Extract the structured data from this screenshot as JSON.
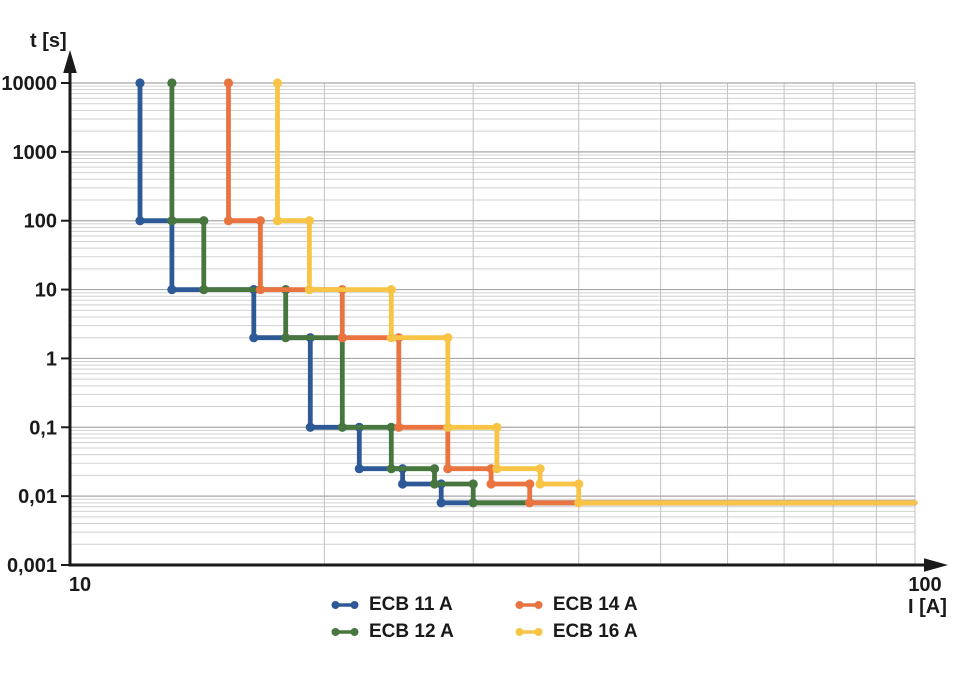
{
  "chart_data": {
    "type": "line",
    "subtype": "stepped-trip-curves",
    "title": "",
    "xlabel": "I [A]",
    "ylabel": "t [s]",
    "x_scale": "log",
    "y_scale": "log",
    "xlim": [
      10,
      100
    ],
    "ylim": [
      0.001,
      10000
    ],
    "x_ticks": [
      10,
      100
    ],
    "x_tick_labels": [
      "10",
      "100"
    ],
    "y_ticks": [
      10000,
      1000,
      100,
      10,
      1,
      0.1,
      0.01,
      0.001
    ],
    "y_tick_labels": [
      "10000",
      "1000",
      "100",
      "10",
      "1",
      "0,1",
      "0,01",
      "0,001"
    ],
    "grid": "major+minor",
    "grid_major_color": "#a6a6a6",
    "grid_minor_color": "#d0d0d0",
    "grid_vertical_color": "#c2c2c2",
    "axis_color": "#1a1a1a",
    "legend_position": "bottom",
    "trip_time_plateaus_s": [
      100,
      10,
      2,
      0.1,
      0.025,
      0.015,
      0.008
    ],
    "step_multiples_of_rated_current": [
      1.1,
      1.2,
      1.5,
      1.75,
      2.0,
      2.25,
      2.5
    ],
    "series": [
      {
        "name": "ECB 11 A",
        "color": "#2d5a96",
        "rated_current_A": 11,
        "points": [
          [
            12.1,
            10000
          ],
          [
            12.1,
            100
          ],
          [
            13.2,
            100
          ],
          [
            13.2,
            10
          ],
          [
            16.5,
            10
          ],
          [
            16.5,
            2
          ],
          [
            19.25,
            2
          ],
          [
            19.25,
            0.1
          ],
          [
            22,
            0.1
          ],
          [
            22,
            0.025
          ],
          [
            24.75,
            0.025
          ],
          [
            24.75,
            0.015
          ],
          [
            27.5,
            0.015
          ],
          [
            27.5,
            0.008
          ],
          [
            100,
            0.008
          ]
        ]
      },
      {
        "name": "ECB 12 A",
        "color": "#47763f",
        "rated_current_A": 12,
        "points": [
          [
            13.2,
            10000
          ],
          [
            13.2,
            100
          ],
          [
            14.4,
            100
          ],
          [
            14.4,
            10
          ],
          [
            18,
            10
          ],
          [
            18,
            2
          ],
          [
            21,
            2
          ],
          [
            21,
            0.1
          ],
          [
            24,
            0.1
          ],
          [
            24,
            0.025
          ],
          [
            27,
            0.025
          ],
          [
            27,
            0.015
          ],
          [
            30,
            0.015
          ],
          [
            30,
            0.008
          ],
          [
            100,
            0.008
          ]
        ]
      },
      {
        "name": "ECB 14 A",
        "color": "#ea7440",
        "rated_current_A": 14,
        "points": [
          [
            15.4,
            10000
          ],
          [
            15.4,
            100
          ],
          [
            16.8,
            100
          ],
          [
            16.8,
            10
          ],
          [
            21,
            10
          ],
          [
            21,
            2
          ],
          [
            24.5,
            2
          ],
          [
            24.5,
            0.1
          ],
          [
            28,
            0.1
          ],
          [
            28,
            0.025
          ],
          [
            31.5,
            0.025
          ],
          [
            31.5,
            0.015
          ],
          [
            35,
            0.015
          ],
          [
            35,
            0.008
          ],
          [
            100,
            0.008
          ]
        ]
      },
      {
        "name": "ECB 16 A",
        "color": "#f8c445",
        "rated_current_A": 16,
        "points": [
          [
            17.6,
            10000
          ],
          [
            17.6,
            100
          ],
          [
            19.2,
            100
          ],
          [
            19.2,
            10
          ],
          [
            24,
            10
          ],
          [
            24,
            2
          ],
          [
            28,
            2
          ],
          [
            28,
            0.1
          ],
          [
            32,
            0.1
          ],
          [
            32,
            0.025
          ],
          [
            36,
            0.025
          ],
          [
            36,
            0.015
          ],
          [
            40,
            0.015
          ],
          [
            40,
            0.008
          ],
          [
            100,
            0.008
          ]
        ]
      }
    ]
  }
}
